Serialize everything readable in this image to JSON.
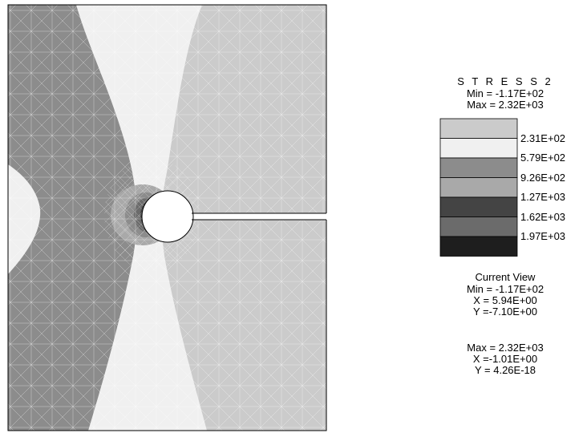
{
  "legend": {
    "title": "S T R E S S 2",
    "min_label": "Min = -1.17E+02",
    "max_label": "Max =  2.32E+03",
    "bands": [
      {
        "color": "#cbcbcb"
      },
      {
        "color": "#f0f0f0"
      },
      {
        "color": "#8c8c8c"
      },
      {
        "color": "#a9a9a9"
      },
      {
        "color": "#444444"
      },
      {
        "color": "#6b6b6b"
      },
      {
        "color": "#1e1e1e"
      }
    ],
    "ticks": [
      "2.31E+02",
      "5.79E+02",
      "9.26E+02",
      "1.27E+03",
      "1.62E+03",
      "1.97E+03"
    ]
  },
  "current_view": {
    "title": "Current View",
    "min": "Min = -1.17E+02",
    "min_x": "X = 5.94E+00",
    "min_y": "Y =-7.10E+00",
    "max": "Max =  2.32E+03",
    "max_x": "X =-1.01E+00",
    "max_y": "Y = 4.26E-18"
  },
  "colors": {
    "left_field": "#8c8c8c",
    "center_field": "#f0f0f0",
    "right_field": "#cbcbcb",
    "mesh_line": "#ffffff",
    "hole": "#ffffff",
    "outline": "#000000"
  }
}
